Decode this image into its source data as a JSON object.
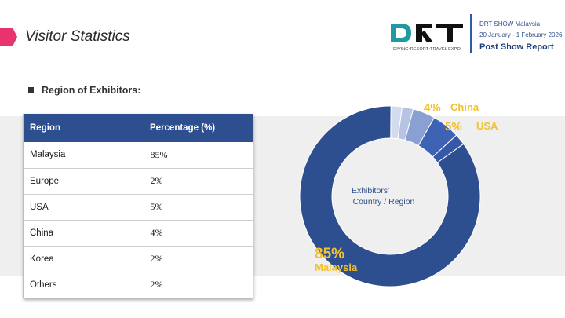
{
  "header": {
    "title": "Visitor Statistics",
    "logo_text": "DRT",
    "logo_tagline": "DIVING•RESORT•TRAVEL EXPO",
    "show_name": "DRT SHOW Malaysia",
    "show_dates": "20 January - 1 February 2026",
    "report_title": "Post Show Report"
  },
  "section": {
    "heading": "Region of Exhibitors:"
  },
  "table": {
    "columns": [
      "Region",
      "Percentage (%)"
    ],
    "rows": [
      {
        "region": "Malaysia",
        "pct": "85%"
      },
      {
        "region": "Europe",
        "pct": "2%"
      },
      {
        "region": "USA",
        "pct": "5%"
      },
      {
        "region": "China",
        "pct": "4%"
      },
      {
        "region": "Korea",
        "pct": "2%"
      },
      {
        "region": "Others",
        "pct": "2%"
      }
    ]
  },
  "chart_data": {
    "type": "pie",
    "center_label": [
      "Exhibitors'",
      "Country / Region"
    ],
    "categories": [
      "Malaysia",
      "Europe",
      "USA",
      "China",
      "Korea",
      "Others"
    ],
    "values": [
      85,
      2,
      5,
      4,
      2,
      2
    ],
    "order": [
      "Others",
      "Korea",
      "China",
      "USA",
      "Europe",
      "Malaysia"
    ],
    "colors": {
      "Malaysia": "#2e4f8f",
      "Europe": "#3558a8",
      "USA": "#3e63b5",
      "China": "#8a9fd2",
      "Korea": "#b6c3e3",
      "Others": "#d3dbef"
    },
    "callouts": [
      {
        "category": "China",
        "pct": "4%",
        "name": "China"
      },
      {
        "category": "USA",
        "pct": "5%",
        "name": "USA"
      },
      {
        "category": "Malaysia",
        "pct": "85%",
        "name": "Malaysia"
      }
    ],
    "callout_color": "#f2c12e"
  }
}
